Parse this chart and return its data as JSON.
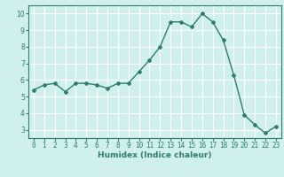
{
  "x": [
    0,
    1,
    2,
    3,
    4,
    5,
    6,
    7,
    8,
    9,
    10,
    11,
    12,
    13,
    14,
    15,
    16,
    17,
    18,
    19,
    20,
    21,
    22,
    23
  ],
  "y": [
    5.4,
    5.7,
    5.8,
    5.3,
    5.8,
    5.8,
    5.7,
    5.5,
    5.8,
    5.8,
    6.5,
    7.2,
    8.0,
    9.5,
    9.5,
    9.2,
    10.0,
    9.5,
    8.4,
    6.3,
    3.9,
    3.3,
    2.8,
    3.2
  ],
  "line_color": "#2e7d6e",
  "marker": "D",
  "marker_size": 2.0,
  "bg_color": "#cff0ee",
  "grid_color": "#ffffff",
  "xlabel": "Humidex (Indice chaleur)",
  "ylim": [
    2.5,
    10.5
  ],
  "xlim": [
    -0.5,
    23.5
  ],
  "yticks": [
    3,
    4,
    5,
    6,
    7,
    8,
    9,
    10
  ],
  "xticks": [
    0,
    1,
    2,
    3,
    4,
    5,
    6,
    7,
    8,
    9,
    10,
    11,
    12,
    13,
    14,
    15,
    16,
    17,
    18,
    19,
    20,
    21,
    22,
    23
  ],
  "tick_fontsize": 5.5,
  "xlabel_fontsize": 6.5,
  "linewidth": 1.0
}
